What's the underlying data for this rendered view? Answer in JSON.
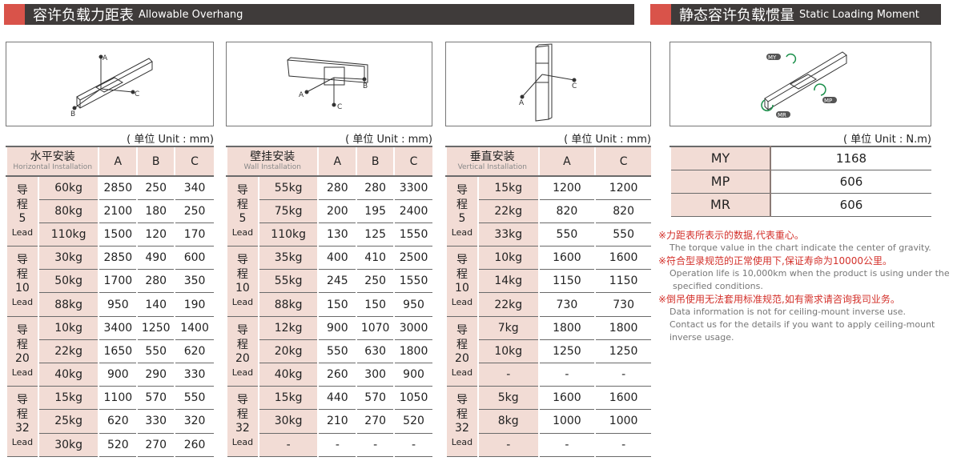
{
  "header_left": {
    "cn": "容许负载力距表",
    "en": "Allowable Overhang"
  },
  "header_right": {
    "cn": "静态容许负载惯量",
    "en": "Static Loading Moment"
  },
  "unit_mm": "( 单位 Unit : mm)",
  "unit_nm": "( 单位 Unit : N.m)",
  "diagram_labels": {
    "a": "A",
    "b": "B",
    "c": "C",
    "my": "MY",
    "mp": "MP",
    "mr": "MR"
  },
  "tables": [
    {
      "cn": "水平安装",
      "en": "Horizontal Installation",
      "cols": [
        "A",
        "B",
        "C"
      ],
      "groups": [
        {
          "lead": "5",
          "rows": [
            [
              "60kg",
              "2850",
              "250",
              "340"
            ],
            [
              "80kg",
              "2100",
              "180",
              "250"
            ],
            [
              "110kg",
              "1500",
              "120",
              "170"
            ]
          ]
        },
        {
          "lead": "10",
          "rows": [
            [
              "30kg",
              "2850",
              "490",
              "600"
            ],
            [
              "50kg",
              "1700",
              "280",
              "350"
            ],
            [
              "88kg",
              "950",
              "140",
              "190"
            ]
          ]
        },
        {
          "lead": "20",
          "rows": [
            [
              "10kg",
              "3400",
              "1250",
              "1400"
            ],
            [
              "22kg",
              "1650",
              "550",
              "620"
            ],
            [
              "40kg",
              "900",
              "290",
              "330"
            ]
          ]
        },
        {
          "lead": "32",
          "rows": [
            [
              "15kg",
              "1100",
              "570",
              "550"
            ],
            [
              "25kg",
              "620",
              "330",
              "320"
            ],
            [
              "30kg",
              "520",
              "270",
              "260"
            ]
          ]
        }
      ]
    },
    {
      "cn": "壁挂安装",
      "en": "Wall Installation",
      "cols": [
        "A",
        "B",
        "C"
      ],
      "groups": [
        {
          "lead": "5",
          "rows": [
            [
              "55kg",
              "280",
              "280",
              "3300"
            ],
            [
              "75kg",
              "200",
              "195",
              "2400"
            ],
            [
              "110kg",
              "130",
              "125",
              "1550"
            ]
          ]
        },
        {
          "lead": "10",
          "rows": [
            [
              "35kg",
              "400",
              "410",
              "2500"
            ],
            [
              "55kg",
              "245",
              "250",
              "1550"
            ],
            [
              "88kg",
              "150",
              "150",
              "950"
            ]
          ]
        },
        {
          "lead": "20",
          "rows": [
            [
              "12kg",
              "900",
              "1070",
              "3000"
            ],
            [
              "20kg",
              "550",
              "630",
              "1800"
            ],
            [
              "40kg",
              "260",
              "300",
              "900"
            ]
          ]
        },
        {
          "lead": "32",
          "rows": [
            [
              "15kg",
              "440",
              "570",
              "1050"
            ],
            [
              "30kg",
              "210",
              "270",
              "520"
            ],
            [
              "-",
              "-",
              "-",
              "-"
            ]
          ]
        }
      ]
    },
    {
      "cn": "垂直安装",
      "en": "Vertical Installation",
      "cols": [
        "A",
        "C"
      ],
      "groups": [
        {
          "lead": "5",
          "rows": [
            [
              "15kg",
              "1200",
              "1200"
            ],
            [
              "22kg",
              "820",
              "820"
            ],
            [
              "33kg",
              "550",
              "550"
            ]
          ]
        },
        {
          "lead": "10",
          "rows": [
            [
              "10kg",
              "1600",
              "1600"
            ],
            [
              "14kg",
              "1150",
              "1150"
            ],
            [
              "22kg",
              "730",
              "730"
            ]
          ]
        },
        {
          "lead": "20",
          "rows": [
            [
              "7kg",
              "1800",
              "1800"
            ],
            [
              "10kg",
              "1250",
              "1250"
            ],
            [
              "-",
              "-",
              "-"
            ]
          ]
        },
        {
          "lead": "32",
          "rows": [
            [
              "5kg",
              "1600",
              "1600"
            ],
            [
              "8kg",
              "1000",
              "1000"
            ],
            [
              "-",
              "-",
              "-"
            ]
          ]
        }
      ]
    }
  ],
  "lead_cn": "导程",
  "lead_en": "Lead",
  "moments": [
    {
      "k": "MY",
      "v": "1168"
    },
    {
      "k": "MP",
      "v": "606"
    },
    {
      "k": "MR",
      "v": "606"
    }
  ],
  "notes": [
    {
      "cn": "※力距表所表示的数据,代表重心。",
      "en": [
        "The torque value in the chart indicate the center of gravity."
      ]
    },
    {
      "cn": "※符合型录规范的正常使用下,保证寿命为10000公里。",
      "en": [
        "Operation life is 10,000km when the product is using under the",
        "specified conditions."
      ]
    },
    {
      "cn": "※倒吊使用无法套用标准规范,如有需求请咨询我司业务。",
      "en": [
        "Data information is not for ceiling-mount inverse use.",
        "Contact us for the details if you want to apply ceiling-mount",
        "inverse usage."
      ]
    }
  ]
}
